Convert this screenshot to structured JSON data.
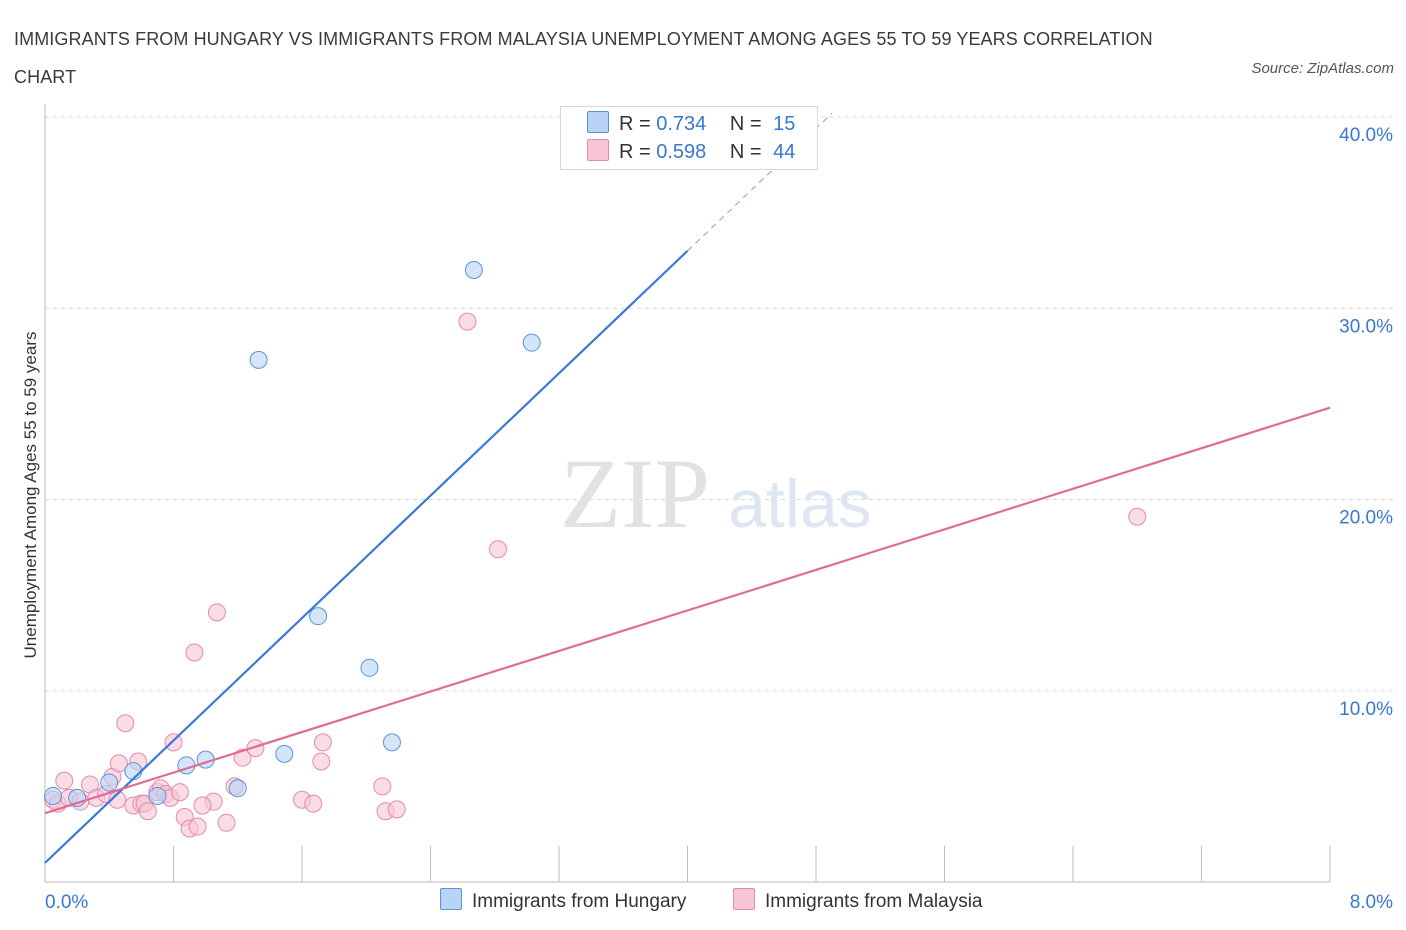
{
  "title": "IMMIGRANTS FROM HUNGARY VS IMMIGRANTS FROM MALAYSIA UNEMPLOYMENT AMONG AGES 55 TO 59 YEARS CORRELATION CHART",
  "source": "Source: ZipAtlas.com",
  "watermark": {
    "zip": "ZIP",
    "atlas": "atlas"
  },
  "legend": {
    "r_label": "R =",
    "n_label": "N =",
    "hungary": {
      "r": "0.734",
      "n": "15"
    },
    "malaysia": {
      "r": "0.598",
      "n": "44"
    }
  },
  "colors": {
    "hungary_fill": "#b8d3f5",
    "hungary_stroke": "#5b93d8",
    "hungary_line": "#3a7ad6",
    "malaysia_fill": "#f7c5d6",
    "malaysia_stroke": "#e58aa8",
    "malaysia_line": "#e06b95",
    "tick_label": "#3a77d0",
    "grid": "#d9d9d9"
  },
  "chart_data": {
    "type": "scatter",
    "title": "IMMIGRANTS FROM HUNGARY VS IMMIGRANTS FROM MALAYSIA UNEMPLOYMENT AMONG AGES 55 TO 59 YEARS CORRELATION CHART",
    "xlabel": "",
    "ylabel": "Unemployment Among Ages 55 to 59 years",
    "xlim": [
      0,
      8
    ],
    "ylim": [
      0,
      40
    ],
    "x_tick_labels": [
      "0.0%",
      "8.0%"
    ],
    "y_ticks": [
      10,
      20,
      30,
      40
    ],
    "y_tick_labels": [
      "10.0%",
      "20.0%",
      "30.0%",
      "40.0%"
    ],
    "grid": true,
    "series": [
      {
        "name": "Immigrants from Hungary",
        "points": [
          [
            0.05,
            4.5
          ],
          [
            0.2,
            4.4
          ],
          [
            0.4,
            5.2
          ],
          [
            0.55,
            5.8
          ],
          [
            0.7,
            4.5
          ],
          [
            0.88,
            6.1
          ],
          [
            1.0,
            6.4
          ],
          [
            1.2,
            4.9
          ],
          [
            1.33,
            27.3
          ],
          [
            1.49,
            6.7
          ],
          [
            1.7,
            13.9
          ],
          [
            2.02,
            11.2
          ],
          [
            2.16,
            7.3
          ],
          [
            2.67,
            32.0
          ],
          [
            3.03,
            28.2
          ]
        ],
        "trendline": {
          "x": [
            0,
            4.0
          ],
          "y": [
            1.0,
            33.0
          ],
          "dashed_extension_to": [
            4.9,
            40.2
          ]
        }
      },
      {
        "name": "Immigrants from Malaysia",
        "points": [
          [
            0.05,
            4.3
          ],
          [
            0.08,
            4.1
          ],
          [
            0.12,
            5.3
          ],
          [
            0.15,
            4.4
          ],
          [
            0.22,
            4.2
          ],
          [
            0.28,
            5.1
          ],
          [
            0.32,
            4.4
          ],
          [
            0.38,
            4.6
          ],
          [
            0.42,
            5.5
          ],
          [
            0.46,
            6.2
          ],
          [
            0.5,
            8.3
          ],
          [
            0.55,
            4.0
          ],
          [
            0.58,
            6.3
          ],
          [
            0.6,
            4.1
          ],
          [
            0.62,
            4.1
          ],
          [
            0.64,
            3.7
          ],
          [
            0.7,
            4.7
          ],
          [
            0.72,
            4.9
          ],
          [
            0.75,
            4.6
          ],
          [
            0.78,
            4.4
          ],
          [
            0.8,
            7.3
          ],
          [
            0.84,
            4.7
          ],
          [
            0.87,
            3.4
          ],
          [
            0.9,
            2.8
          ],
          [
            0.93,
            12.0
          ],
          [
            0.95,
            2.9
          ],
          [
            1.05,
            4.2
          ],
          [
            1.07,
            14.1
          ],
          [
            1.13,
            3.1
          ],
          [
            1.18,
            5.0
          ],
          [
            1.23,
            6.5
          ],
          [
            1.31,
            7.0
          ],
          [
            1.6,
            4.3
          ],
          [
            1.67,
            4.1
          ],
          [
            1.72,
            6.3
          ],
          [
            1.73,
            7.3
          ],
          [
            2.1,
            5.0
          ],
          [
            2.12,
            3.7
          ],
          [
            2.19,
            3.8
          ],
          [
            2.63,
            29.3
          ],
          [
            2.82,
            17.4
          ],
          [
            6.8,
            19.1
          ],
          [
            0.98,
            4.0
          ],
          [
            0.45,
            4.3
          ]
        ],
        "trendline": {
          "x": [
            0,
            8.0
          ],
          "y": [
            3.6,
            24.8
          ]
        }
      }
    ]
  },
  "bottom_legend": {
    "hungary": "Immigrants from Hungary",
    "malaysia": "Immigrants from Malaysia"
  }
}
